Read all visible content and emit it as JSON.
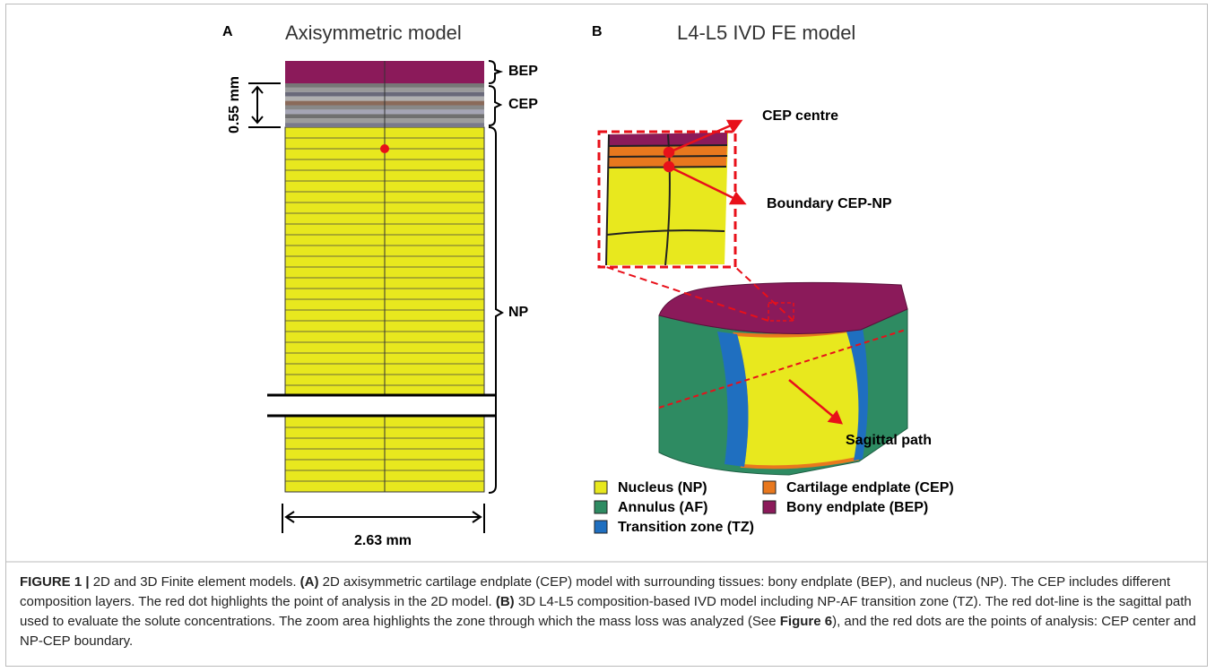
{
  "panel_a": {
    "label": "A",
    "title": "Axisymmetric model",
    "layers": [
      "BEP",
      "CEP",
      "NP"
    ],
    "thickness": "0.55 mm",
    "width": "2.63 mm"
  },
  "panel_b": {
    "label": "B",
    "title": "L4-L5 IVD FE model",
    "annotations": [
      "CEP centre",
      "Boundary CEP-NP",
      "Sagittal path"
    ],
    "legend": [
      {
        "label": "Nucleus (NP)",
        "color": "#e8e81e"
      },
      {
        "label": "Annulus (AF)",
        "color": "#2e8b62"
      },
      {
        "label": "Transition zone (TZ)",
        "color": "#1f6fc0"
      },
      {
        "label": "Cartilage endplate (CEP)",
        "color": "#e8781e"
      },
      {
        "label": "Bony endplate (BEP)",
        "color": "#8b1a5a"
      }
    ]
  },
  "caption": [
    {
      "text": "FIGURE 1 |",
      "bold": true
    },
    {
      "text": " 2D and 3D Finite element models. ",
      "bold": false
    },
    {
      "text": "(A)",
      "bold": true
    },
    {
      "text": " 2D axisymmetric cartilage endplate (CEP) model with surrounding tissues: bony endplate (BEP), and nucleus (NP). The CEP includes different composition layers. The red dot highlights the point of analysis in the 2D model. ",
      "bold": false
    },
    {
      "text": "(B)",
      "bold": true
    },
    {
      "text": " 3D L4-L5 composition-based IVD model including NP-AF transition zone (TZ). The red dot-line is the sagittal path used to evaluate the solute concentrations. The zoom area highlights the zone through which the mass loss was analyzed (See ",
      "bold": false
    },
    {
      "text": "Figure 6",
      "bold": true
    },
    {
      "text": "), and the red dots are the points of analysis: CEP center and NP-CEP boundary.",
      "bold": false
    }
  ]
}
